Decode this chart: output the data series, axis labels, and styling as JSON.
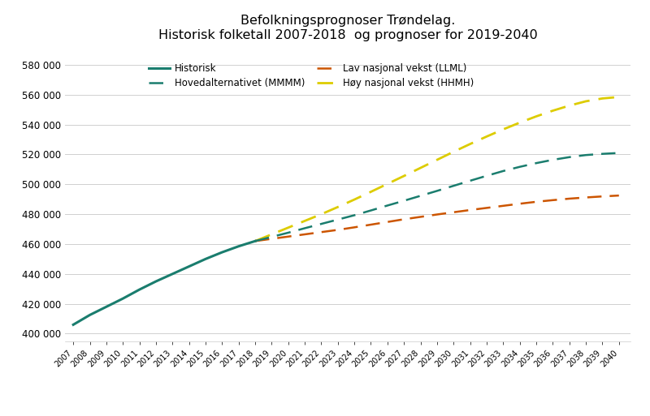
{
  "title_line1": "Befolkningsprognoser Trøndelag.",
  "title_line2": "Historisk folketall 2007-2018  og prognoser for 2019-2040",
  "historisk_years": [
    2007,
    2008,
    2009,
    2010,
    2011,
    2012,
    2013,
    2014,
    2015,
    2016,
    2017,
    2018
  ],
  "historisk_values": [
    406000,
    412500,
    418000,
    423500,
    429500,
    435000,
    440000,
    445000,
    450000,
    454500,
    458500,
    462000
  ],
  "prognose_years": [
    2018,
    2019,
    2020,
    2021,
    2022,
    2023,
    2024,
    2025,
    2026,
    2027,
    2028,
    2029,
    2030,
    2031,
    2032,
    2033,
    2034,
    2035,
    2036,
    2037,
    2038,
    2039,
    2040
  ],
  "hoved_values": [
    462000,
    464800,
    467600,
    470600,
    473500,
    476400,
    479300,
    482500,
    485800,
    489000,
    492300,
    495600,
    499000,
    502400,
    505700,
    508900,
    511700,
    514200,
    516400,
    518200,
    519600,
    520400,
    521000
  ],
  "lav_values": [
    462000,
    463500,
    465000,
    466500,
    468000,
    469500,
    471200,
    473000,
    474800,
    476600,
    478200,
    479800,
    481300,
    482800,
    484200,
    485600,
    487000,
    488300,
    489400,
    490400,
    491200,
    491900,
    492500
  ],
  "hoy_values": [
    462000,
    466500,
    471000,
    475500,
    480000,
    484800,
    489800,
    495000,
    500300,
    505600,
    511000,
    516400,
    521800,
    527000,
    532000,
    536800,
    541300,
    545500,
    549300,
    552700,
    555600,
    557500,
    558500
  ],
  "historisk_color": "#1a7d6e",
  "hoved_color": "#1a7d6e",
  "lav_color": "#cc5500",
  "hoy_color": "#ddcc00",
  "ylim_min": 395000,
  "ylim_max": 590000,
  "yticks": [
    400000,
    420000,
    440000,
    460000,
    480000,
    500000,
    520000,
    540000,
    560000,
    580000
  ],
  "ytick_labels": [
    "400 000",
    "420 000",
    "440 000",
    "460 000",
    "480 000",
    "500 000",
    "520 000",
    "540 000",
    "560 000",
    "580 000"
  ],
  "legend_historisk": "Historisk",
  "legend_hoved": "Hovedalternativet (MMMM)",
  "legend_lav": "Lav nasjonal vekst (LLML)",
  "legend_hoy": "Høy nasjonal vekst (HHMH)",
  "background_color": "#ffffff",
  "grid_color": "#d0d0d0"
}
